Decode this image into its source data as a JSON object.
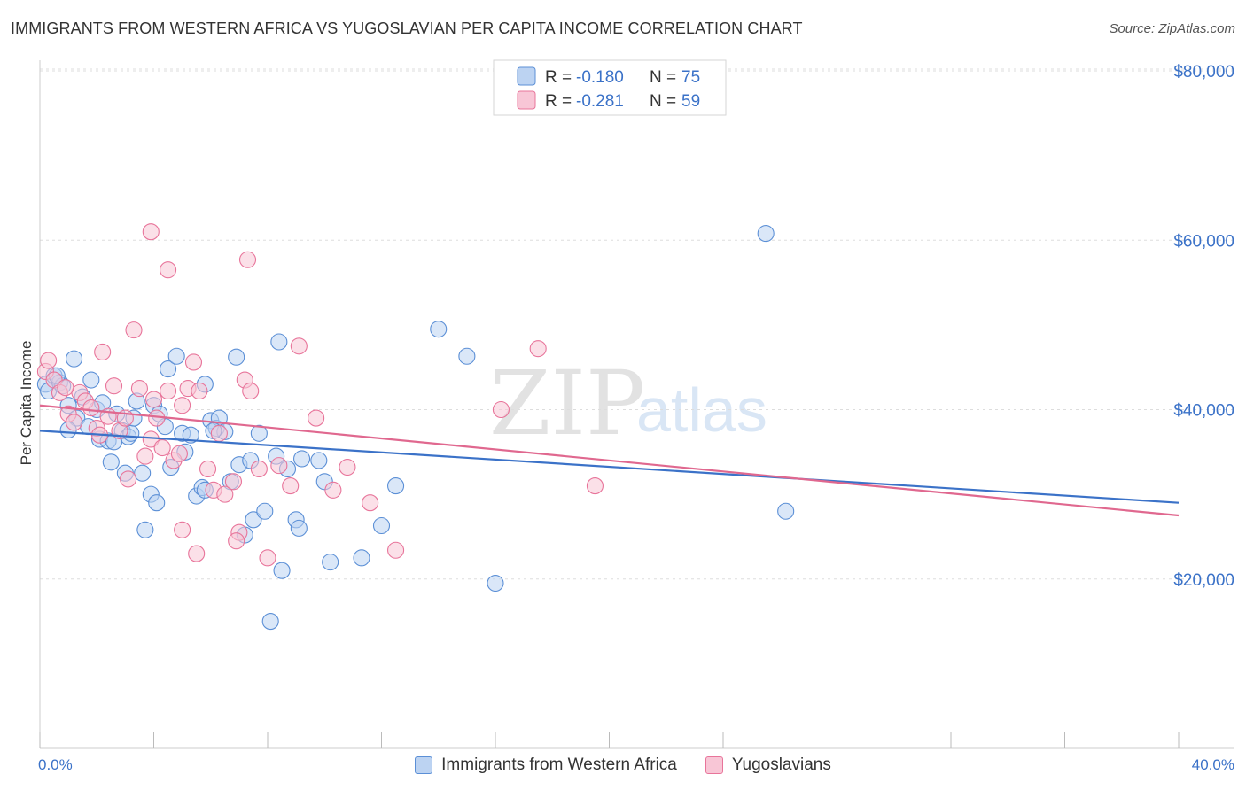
{
  "chart_data": {
    "type": "scatter",
    "title": "IMMIGRANTS FROM WESTERN AFRICA VS YUGOSLAVIAN PER CAPITA INCOME CORRELATION CHART",
    "source": "Source: ZipAtlas.com",
    "ylabel": "Per Capita Income",
    "xlim": [
      0,
      40
    ],
    "ylim": [
      0,
      80000
    ],
    "x_tick_labels": [
      "0.0%",
      "40.0%"
    ],
    "y_ticks": [
      20000,
      40000,
      60000,
      80000
    ],
    "y_tick_labels": [
      "$20,000",
      "$40,000",
      "$60,000",
      "$80,000"
    ],
    "watermark": [
      "ZIP",
      "atlas"
    ],
    "legend_stats": [
      {
        "r_label": "R =",
        "r_value": "-0.180",
        "n_label": "N =",
        "n_value": "75"
      },
      {
        "r_label": "R =",
        "r_value": "-0.281",
        "n_label": "N =",
        "n_value": "59"
      }
    ],
    "series": [
      {
        "name": "Immigrants from Western Africa",
        "color": "#5b8fd6",
        "fill": "#bcd3f2",
        "trend": {
          "x": [
            0,
            40
          ],
          "y": [
            37500,
            29000
          ]
        },
        "points": [
          [
            0.2,
            43000
          ],
          [
            0.3,
            42200
          ],
          [
            0.5,
            44000
          ],
          [
            0.7,
            43200
          ],
          [
            0.8,
            42800
          ],
          [
            1.0,
            40500
          ],
          [
            1.2,
            46000
          ],
          [
            1.3,
            39000
          ],
          [
            1.5,
            41500
          ],
          [
            1.7,
            38000
          ],
          [
            1.8,
            43500
          ],
          [
            2.0,
            40000
          ],
          [
            2.1,
            36500
          ],
          [
            2.2,
            40800
          ],
          [
            2.4,
            36300
          ],
          [
            2.5,
            33800
          ],
          [
            2.7,
            39500
          ],
          [
            2.9,
            37500
          ],
          [
            3.0,
            32500
          ],
          [
            3.1,
            36800
          ],
          [
            3.2,
            37200
          ],
          [
            3.3,
            39000
          ],
          [
            3.4,
            41000
          ],
          [
            3.6,
            32500
          ],
          [
            3.7,
            25800
          ],
          [
            3.9,
            30000
          ],
          [
            4.0,
            40500
          ],
          [
            4.1,
            29000
          ],
          [
            4.2,
            39500
          ],
          [
            4.4,
            38000
          ],
          [
            4.5,
            44800
          ],
          [
            4.6,
            33200
          ],
          [
            4.8,
            46300
          ],
          [
            5.0,
            37200
          ],
          [
            5.1,
            35000
          ],
          [
            5.3,
            37000
          ],
          [
            5.5,
            29800
          ],
          [
            5.7,
            30800
          ],
          [
            5.8,
            43000
          ],
          [
            6.0,
            38700
          ],
          [
            6.2,
            37800
          ],
          [
            6.3,
            39000
          ],
          [
            6.5,
            37400
          ],
          [
            6.7,
            31500
          ],
          [
            6.9,
            46200
          ],
          [
            7.0,
            33500
          ],
          [
            7.2,
            25200
          ],
          [
            7.4,
            34000
          ],
          [
            7.5,
            27000
          ],
          [
            7.7,
            37200
          ],
          [
            7.9,
            28000
          ],
          [
            8.3,
            34500
          ],
          [
            8.5,
            21000
          ],
          [
            8.7,
            33000
          ],
          [
            9.0,
            27000
          ],
          [
            9.1,
            26000
          ],
          [
            9.2,
            34200
          ],
          [
            9.8,
            34000
          ],
          [
            10.0,
            31500
          ],
          [
            10.2,
            22000
          ],
          [
            11.3,
            22500
          ],
          [
            12.0,
            26300
          ],
          [
            12.5,
            31000
          ],
          [
            14.0,
            49500
          ],
          [
            15.0,
            46300
          ],
          [
            16.0,
            19500
          ],
          [
            25.5,
            60800
          ],
          [
            26.2,
            28000
          ],
          [
            8.1,
            15000
          ],
          [
            1.0,
            37600
          ],
          [
            0.6,
            44000
          ],
          [
            2.6,
            36200
          ],
          [
            5.8,
            30500
          ],
          [
            8.4,
            48000
          ],
          [
            6.1,
            37500
          ]
        ]
      },
      {
        "name": "Yugoslavians",
        "color": "#e8749a",
        "fill": "#f8c6d6",
        "trend": {
          "x": [
            0,
            40
          ],
          "y": [
            40500,
            27500
          ]
        },
        "points": [
          [
            0.2,
            44500
          ],
          [
            0.3,
            45800
          ],
          [
            0.5,
            43500
          ],
          [
            0.7,
            42000
          ],
          [
            1.0,
            39500
          ],
          [
            1.2,
            38500
          ],
          [
            1.4,
            42000
          ],
          [
            1.6,
            41000
          ],
          [
            1.8,
            40200
          ],
          [
            2.0,
            37800
          ],
          [
            2.2,
            46800
          ],
          [
            2.4,
            39200
          ],
          [
            2.6,
            42800
          ],
          [
            2.8,
            37500
          ],
          [
            3.0,
            39000
          ],
          [
            3.1,
            31800
          ],
          [
            3.3,
            49400
          ],
          [
            3.5,
            42500
          ],
          [
            3.7,
            34500
          ],
          [
            3.9,
            36500
          ],
          [
            4.1,
            39000
          ],
          [
            4.3,
            35500
          ],
          [
            4.5,
            42200
          ],
          [
            4.7,
            34000
          ],
          [
            4.9,
            34800
          ],
          [
            5.0,
            40500
          ],
          [
            5.2,
            42500
          ],
          [
            5.4,
            45600
          ],
          [
            5.6,
            42200
          ],
          [
            5.9,
            33000
          ],
          [
            6.1,
            30500
          ],
          [
            6.3,
            37200
          ],
          [
            6.5,
            30000
          ],
          [
            6.8,
            31500
          ],
          [
            7.0,
            25500
          ],
          [
            7.2,
            43500
          ],
          [
            7.4,
            42200
          ],
          [
            7.7,
            33000
          ],
          [
            8.0,
            22500
          ],
          [
            8.4,
            33400
          ],
          [
            8.8,
            31000
          ],
          [
            9.1,
            47500
          ],
          [
            9.7,
            39000
          ],
          [
            10.3,
            30500
          ],
          [
            10.8,
            33200
          ],
          [
            11.6,
            29000
          ],
          [
            16.2,
            40000
          ],
          [
            17.5,
            47200
          ],
          [
            19.5,
            31000
          ],
          [
            3.9,
            61000
          ],
          [
            4.5,
            56500
          ],
          [
            7.3,
            57700
          ],
          [
            2.1,
            37000
          ],
          [
            4.0,
            41200
          ],
          [
            5.5,
            23000
          ],
          [
            5.0,
            25800
          ],
          [
            6.9,
            24500
          ],
          [
            0.9,
            42600
          ],
          [
            12.5,
            23400
          ]
        ]
      }
    ]
  },
  "legend_bottom": {
    "items": [
      "Immigrants from Western Africa",
      "Yugoslavians"
    ]
  }
}
